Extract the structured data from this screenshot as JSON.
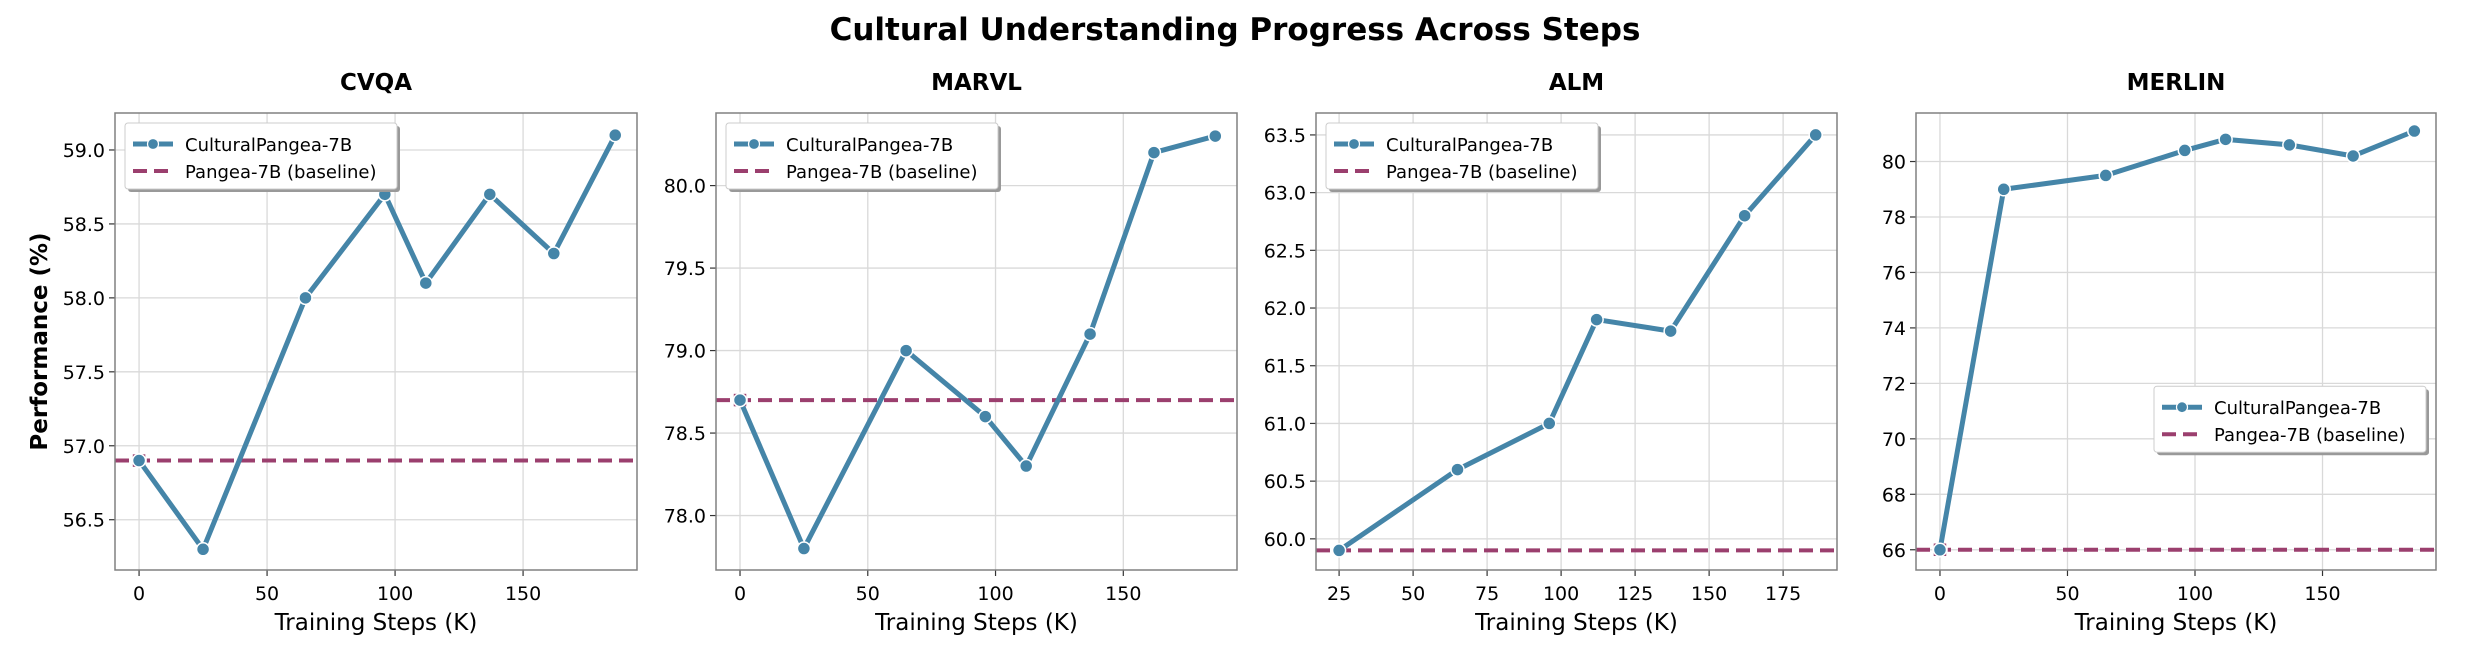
{
  "chart_data": [
    {
      "type": "line",
      "title": "CVQA",
      "xlabel": "Training Steps (K)",
      "ylabel": "Performance (%)",
      "xlim": [
        -9.4,
        194.5
      ],
      "ylim": [
        56.16,
        59.25
      ],
      "xticks": [
        0,
        50,
        100,
        150
      ],
      "yticks": [
        56.5,
        57.0,
        57.5,
        58.0,
        58.5,
        59.0
      ],
      "ytick_labels": [
        "56.5",
        "57.0",
        "57.5",
        "58.0",
        "58.5",
        "59.0"
      ],
      "grid": true,
      "legend": "upper-left",
      "series": [
        {
          "name": "CulturalPangea-7B",
          "x": [
            0,
            25,
            65,
            96,
            112,
            137,
            162,
            186
          ],
          "y": [
            56.9,
            56.3,
            58.0,
            58.7,
            58.1,
            58.7,
            58.3,
            59.1
          ]
        }
      ],
      "baseline": {
        "name": "Pangea-7B (baseline)",
        "value": 56.9
      }
    },
    {
      "type": "line",
      "title": "MARVL",
      "xlabel": "Training Steps (K)",
      "ylabel": "",
      "xlim": [
        -9.4,
        194.5
      ],
      "ylim": [
        77.67,
        80.44
      ],
      "xticks": [
        0,
        50,
        100,
        150
      ],
      "yticks": [
        78.0,
        78.5,
        79.0,
        79.5,
        80.0
      ],
      "ytick_labels": [
        "78.0",
        "78.5",
        "79.0",
        "79.5",
        "80.0"
      ],
      "grid": true,
      "legend": "upper-left",
      "series": [
        {
          "name": "CulturalPangea-7B",
          "x": [
            0,
            25,
            65,
            96,
            112,
            137,
            162,
            186
          ],
          "y": [
            78.7,
            77.8,
            79.0,
            78.6,
            78.3,
            79.1,
            80.2,
            80.3
          ]
        }
      ],
      "baseline": {
        "name": "Pangea-7B (baseline)",
        "value": 78.7
      }
    },
    {
      "type": "line",
      "title": "ALM",
      "xlabel": "Training Steps (K)",
      "ylabel": "",
      "xlim": [
        17.2,
        193.2
      ],
      "ylim": [
        59.73,
        63.69
      ],
      "xticks": [
        25,
        50,
        75,
        100,
        125,
        150,
        175
      ],
      "yticks": [
        60.0,
        60.5,
        61.0,
        61.5,
        62.0,
        62.5,
        63.0,
        63.5
      ],
      "ytick_labels": [
        "60.0",
        "60.5",
        "61.0",
        "61.5",
        "62.0",
        "62.5",
        "63.0",
        "63.5"
      ],
      "grid": true,
      "legend": "upper-left",
      "series": [
        {
          "name": "CulturalPangea-7B",
          "x": [
            25,
            65,
            96,
            112,
            137,
            162,
            186
          ],
          "y": [
            59.9,
            60.6,
            61.0,
            61.9,
            61.8,
            62.8,
            63.5
          ]
        }
      ],
      "baseline": {
        "name": "Pangea-7B (baseline)",
        "value": 59.9
      }
    },
    {
      "type": "line",
      "title": "MERLIN",
      "xlabel": "Training Steps (K)",
      "ylabel": "",
      "xlim": [
        -9.4,
        194.5
      ],
      "ylim": [
        65.27,
        81.75
      ],
      "xticks": [
        0,
        50,
        100,
        150
      ],
      "yticks": [
        66,
        68,
        70,
        72,
        74,
        76,
        78,
        80
      ],
      "ytick_labels": [
        "66",
        "68",
        "70",
        "72",
        "74",
        "76",
        "78",
        "80"
      ],
      "grid": true,
      "legend": "center-right",
      "series": [
        {
          "name": "CulturalPangea-7B",
          "x": [
            0,
            25,
            65,
            96,
            112,
            137,
            162,
            186
          ],
          "y": [
            66.0,
            79.0,
            79.5,
            80.4,
            80.8,
            80.6,
            80.2,
            81.1
          ]
        }
      ],
      "baseline": {
        "name": "Pangea-7B (baseline)",
        "value": 66.0
      }
    }
  ],
  "figure": {
    "title": "Cultural Understanding Progress Across Steps",
    "colors": {
      "series": "#4585a8",
      "baseline": "#9b3f6e",
      "grid": "#d9d9d9",
      "axes": "#808080"
    }
  }
}
